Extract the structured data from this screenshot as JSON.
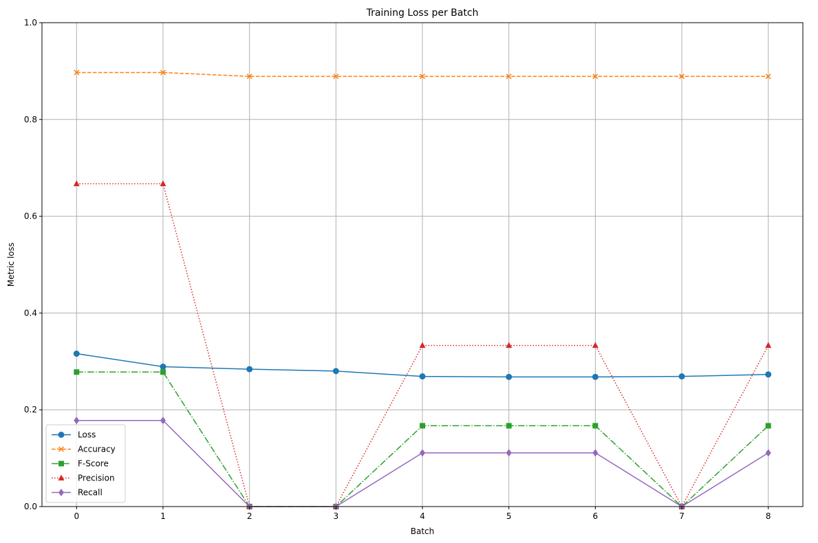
{
  "chart_data": {
    "type": "line",
    "title": "Training Loss per Batch",
    "xlabel": "Batch",
    "ylabel": "Metric loss",
    "x": [
      0,
      1,
      2,
      3,
      4,
      5,
      6,
      7,
      8
    ],
    "xlim": [
      -0.4,
      8.4
    ],
    "ylim": [
      0,
      1
    ],
    "xticks": [
      "0",
      "1",
      "2",
      "3",
      "4",
      "5",
      "6",
      "7",
      "8"
    ],
    "yticks": [
      "0.0",
      "0.2",
      "0.4",
      "0.6",
      "0.8",
      "1.0"
    ],
    "grid": true,
    "legend_position": "lower-left",
    "series": [
      {
        "name": "Loss",
        "color": "#1f77b4",
        "linestyle": "solid",
        "marker": "circle",
        "values": [
          0.316,
          0.289,
          0.284,
          0.28,
          0.269,
          0.268,
          0.268,
          0.269,
          0.273
        ]
      },
      {
        "name": "Accuracy",
        "color": "#ff7f0e",
        "linestyle": "dashed",
        "marker": "x",
        "values": [
          0.897,
          0.897,
          0.889,
          0.889,
          0.889,
          0.889,
          0.889,
          0.889,
          0.889
        ]
      },
      {
        "name": "F-Score",
        "color": "#2ca02c",
        "linestyle": "dashdot",
        "marker": "square",
        "values": [
          0.278,
          0.278,
          0.0,
          0.0,
          0.167,
          0.167,
          0.167,
          0.0,
          0.167
        ]
      },
      {
        "name": "Precision",
        "color": "#d62728",
        "linestyle": "dotted",
        "marker": "triangle",
        "values": [
          0.667,
          0.667,
          0.0,
          0.0,
          0.333,
          0.333,
          0.333,
          0.0,
          0.333
        ]
      },
      {
        "name": "Recall",
        "color": "#9467bd",
        "linestyle": "solid",
        "marker": "diamond",
        "values": [
          0.178,
          0.178,
          0.0,
          0.0,
          0.111,
          0.111,
          0.111,
          0.0,
          0.111
        ]
      }
    ]
  }
}
